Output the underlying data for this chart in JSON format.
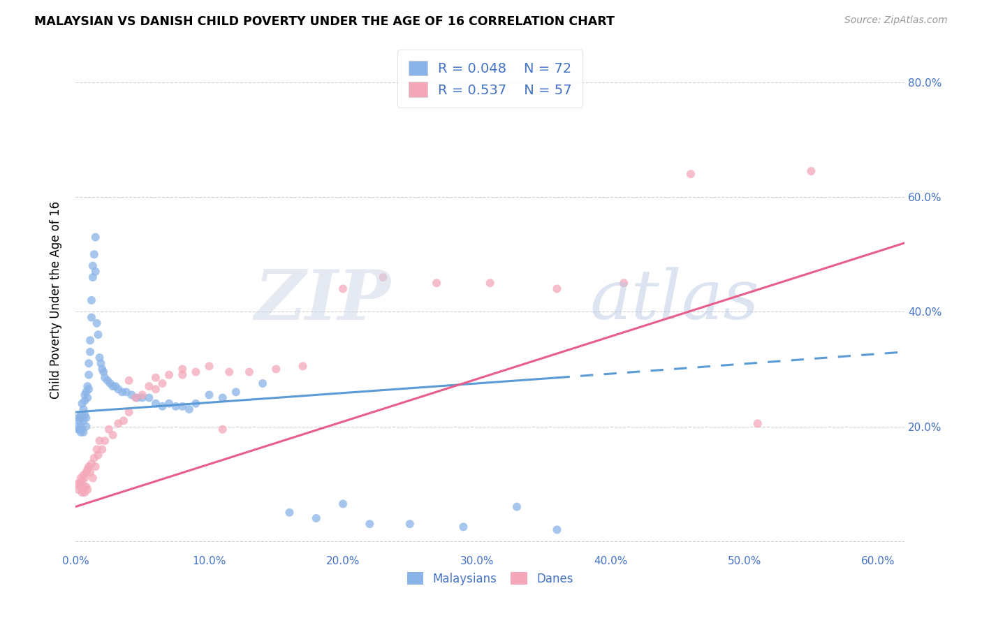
{
  "title": "MALAYSIAN VS DANISH CHILD POVERTY UNDER THE AGE OF 16 CORRELATION CHART",
  "source": "Source: ZipAtlas.com",
  "ylabel": "Child Poverty Under the Age of 16",
  "xlim": [
    0.0,
    0.62
  ],
  "ylim": [
    -0.02,
    0.86
  ],
  "x_ticks": [
    0.0,
    0.1,
    0.2,
    0.3,
    0.4,
    0.5,
    0.6
  ],
  "x_tick_labels": [
    "0.0%",
    "10.0%",
    "20.0%",
    "30.0%",
    "40.0%",
    "50.0%",
    "60.0%"
  ],
  "y_ticks_right": [
    0.0,
    0.2,
    0.4,
    0.6,
    0.8
  ],
  "y_tick_labels_right": [
    "",
    "20.0%",
    "40.0%",
    "60.0%",
    "80.0%"
  ],
  "legend_r_malaysia": "0.048",
  "legend_n_malaysia": "72",
  "legend_r_denmark": "0.537",
  "legend_n_denmark": "57",
  "color_malaysia": "#8ab4e8",
  "color_denmark": "#f4a7b9",
  "color_malaysia_line": "#5b9bd5",
  "color_denmark_line": "#e85d8a",
  "color_text": "#4472c4",
  "color_grid": "#b0b0b0",
  "malaysia_line_x0": 0.0,
  "malaysia_line_y0": 0.225,
  "malaysia_line_x1": 0.36,
  "malaysia_line_y1": 0.285,
  "malaysia_line_xdash0": 0.36,
  "malaysia_line_ydash0": 0.285,
  "malaysia_line_xdash1": 0.62,
  "malaysia_line_ydash1": 0.33,
  "denmark_line_x0": 0.0,
  "denmark_line_y0": 0.06,
  "denmark_line_x1": 0.62,
  "denmark_line_y1": 0.52,
  "malaysia_scatter_x": [
    0.001,
    0.002,
    0.002,
    0.003,
    0.003,
    0.003,
    0.004,
    0.004,
    0.004,
    0.005,
    0.005,
    0.005,
    0.006,
    0.006,
    0.006,
    0.007,
    0.007,
    0.007,
    0.008,
    0.008,
    0.008,
    0.009,
    0.009,
    0.01,
    0.01,
    0.01,
    0.011,
    0.011,
    0.012,
    0.012,
    0.013,
    0.013,
    0.014,
    0.015,
    0.015,
    0.016,
    0.017,
    0.018,
    0.019,
    0.02,
    0.021,
    0.022,
    0.024,
    0.026,
    0.028,
    0.03,
    0.032,
    0.035,
    0.038,
    0.042,
    0.046,
    0.05,
    0.055,
    0.06,
    0.065,
    0.07,
    0.075,
    0.08,
    0.085,
    0.09,
    0.1,
    0.11,
    0.12,
    0.14,
    0.16,
    0.18,
    0.2,
    0.22,
    0.25,
    0.29,
    0.33,
    0.36
  ],
  "malaysia_scatter_y": [
    0.2,
    0.215,
    0.195,
    0.21,
    0.195,
    0.215,
    0.2,
    0.22,
    0.19,
    0.215,
    0.195,
    0.24,
    0.21,
    0.19,
    0.23,
    0.22,
    0.245,
    0.255,
    0.215,
    0.26,
    0.2,
    0.25,
    0.27,
    0.265,
    0.29,
    0.31,
    0.33,
    0.35,
    0.39,
    0.42,
    0.46,
    0.48,
    0.5,
    0.53,
    0.47,
    0.38,
    0.36,
    0.32,
    0.31,
    0.3,
    0.295,
    0.285,
    0.28,
    0.275,
    0.27,
    0.27,
    0.265,
    0.26,
    0.26,
    0.255,
    0.25,
    0.25,
    0.25,
    0.24,
    0.235,
    0.24,
    0.235,
    0.235,
    0.23,
    0.24,
    0.255,
    0.25,
    0.26,
    0.275,
    0.05,
    0.04,
    0.065,
    0.03,
    0.03,
    0.025,
    0.06,
    0.02
  ],
  "denmark_scatter_x": [
    0.001,
    0.002,
    0.003,
    0.004,
    0.004,
    0.005,
    0.005,
    0.006,
    0.006,
    0.007,
    0.007,
    0.008,
    0.008,
    0.009,
    0.009,
    0.01,
    0.011,
    0.012,
    0.013,
    0.014,
    0.015,
    0.016,
    0.017,
    0.018,
    0.02,
    0.022,
    0.025,
    0.028,
    0.032,
    0.036,
    0.04,
    0.045,
    0.05,
    0.055,
    0.06,
    0.065,
    0.07,
    0.08,
    0.09,
    0.1,
    0.115,
    0.13,
    0.15,
    0.17,
    0.2,
    0.23,
    0.27,
    0.31,
    0.36,
    0.41,
    0.46,
    0.51,
    0.55,
    0.04,
    0.06,
    0.08,
    0.11
  ],
  "denmark_scatter_y": [
    0.1,
    0.09,
    0.1,
    0.095,
    0.11,
    0.085,
    0.105,
    0.095,
    0.115,
    0.085,
    0.11,
    0.095,
    0.12,
    0.09,
    0.125,
    0.13,
    0.12,
    0.135,
    0.11,
    0.145,
    0.13,
    0.16,
    0.15,
    0.175,
    0.16,
    0.175,
    0.195,
    0.185,
    0.205,
    0.21,
    0.225,
    0.25,
    0.255,
    0.27,
    0.265,
    0.275,
    0.29,
    0.3,
    0.295,
    0.305,
    0.295,
    0.295,
    0.3,
    0.305,
    0.44,
    0.46,
    0.45,
    0.45,
    0.44,
    0.45,
    0.64,
    0.205,
    0.645,
    0.28,
    0.285,
    0.29,
    0.195
  ]
}
